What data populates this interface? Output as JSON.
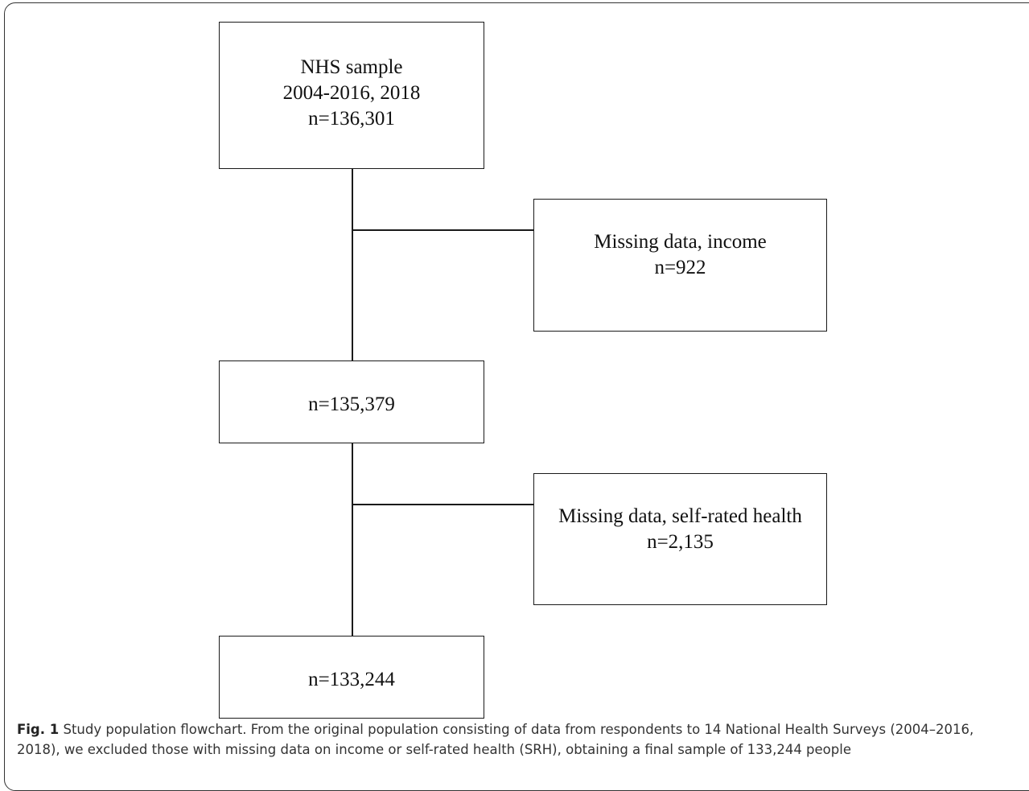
{
  "flowchart": {
    "nodes": [
      {
        "id": "start",
        "lines": [
          "NHS sample",
          "2004-2016, 2018",
          "n=136,301"
        ]
      },
      {
        "id": "exclusion-1",
        "lines": [
          "Missing data, income",
          "n=922"
        ]
      },
      {
        "id": "step-2",
        "lines": [
          "n=135,379"
        ]
      },
      {
        "id": "exclusion-2",
        "lines": [
          "Missing data, self-rated health",
          "n=2,135"
        ]
      },
      {
        "id": "final",
        "lines": [
          "n=133,244"
        ]
      }
    ]
  },
  "caption": {
    "label": "Fig. 1",
    "line1": " Study population flowchart. From the original population consisting of data from respondents to 14 National Health Surveys (2004–2016,",
    "line2": "2018), we excluded those with missing data on income or self-rated health (SRH), obtaining a final sample of 133,244 people"
  }
}
